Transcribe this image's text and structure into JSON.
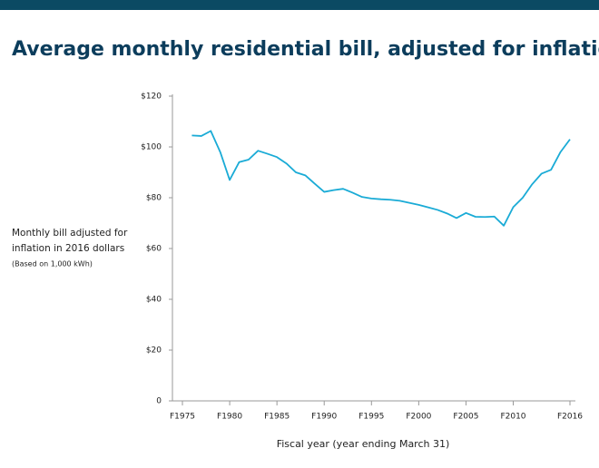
{
  "chart_data": {
    "type": "line",
    "title": "Average monthly residential bill, adjusted for inflation",
    "y_label": [
      "Monthly bill adjusted for",
      "inflation in 2016 dollars",
      "(Based on 1,000 kWh)"
    ],
    "x_label": "Fiscal year (year ending March 31)",
    "x": [
      1976,
      1977,
      1978,
      1979,
      1980,
      1981,
      1982,
      1983,
      1984,
      1985,
      1986,
      1987,
      1988,
      1989,
      1990,
      1991,
      1992,
      1993,
      1994,
      1995,
      1996,
      1997,
      1998,
      1999,
      2000,
      2001,
      2002,
      2003,
      2004,
      2005,
      2006,
      2007,
      2008,
      2009,
      2010,
      2011,
      2012,
      2013,
      2014,
      2015,
      2016
    ],
    "values": [
      104.5,
      104.3,
      106.3,
      98,
      87,
      94,
      95,
      98.5,
      97.3,
      96,
      93.5,
      90,
      88.8,
      85.5,
      82.3,
      83,
      83.5,
      82,
      80.3,
      79.7,
      79.4,
      79.2,
      78.8,
      78,
      77.2,
      76.2,
      75.2,
      73.8,
      72,
      74,
      72.5,
      72.4,
      72.6,
      69,
      76.3,
      80,
      85.3,
      89.5,
      91,
      98,
      103
    ],
    "color": "#1aabd6",
    "xlim": [
      1975,
      2016
    ],
    "xticks": [
      {
        "value": 1975,
        "label": "F1975"
      },
      {
        "value": 1980,
        "label": "F1980"
      },
      {
        "value": 1985,
        "label": "F1985"
      },
      {
        "value": 1990,
        "label": "F1990"
      },
      {
        "value": 1995,
        "label": "F1995"
      },
      {
        "value": 2000,
        "label": "F2000"
      },
      {
        "value": 2005,
        "label": "F2005"
      },
      {
        "value": 2010,
        "label": "F2010"
      },
      {
        "value": 2016,
        "label": "F2016"
      }
    ],
    "ylim": [
      0,
      120
    ],
    "yticks": [
      0,
      {
        "value": 20,
        "label": "$20"
      },
      {
        "value": 40,
        "label": "$40"
      },
      {
        "value": 60,
        "label": "$60"
      },
      {
        "value": 80,
        "label": "$80"
      },
      {
        "value": 100,
        "label": "$100"
      },
      {
        "value": 120,
        "label": "$120"
      }
    ],
    "grid": false
  }
}
